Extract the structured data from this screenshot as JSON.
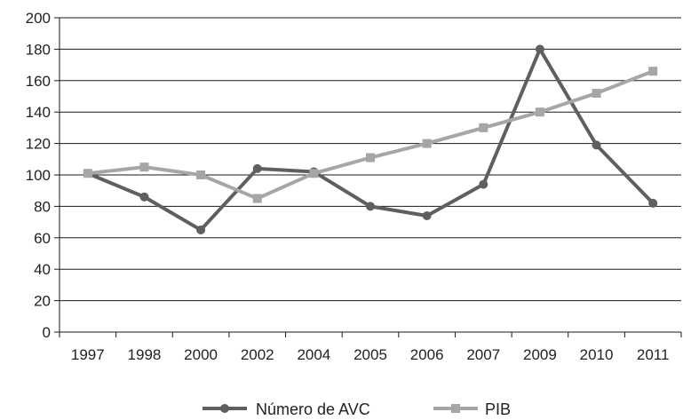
{
  "chart_data": {
    "type": "line",
    "categories": [
      "1997",
      "1998",
      "2000",
      "2002",
      "2004",
      "2005",
      "2006",
      "2007",
      "2009",
      "2010",
      "2011"
    ],
    "series": [
      {
        "name": "Número de AVC",
        "color": "#5f5f5f",
        "marker": "circle",
        "values": [
          101,
          86,
          65,
          104,
          102,
          80,
          74,
          94,
          180,
          119,
          82
        ]
      },
      {
        "name": "PIB",
        "color": "#a6a6a6",
        "marker": "square",
        "values": [
          101,
          105,
          100,
          85,
          101,
          111,
          120,
          130,
          140,
          152,
          166
        ]
      }
    ],
    "ylim": [
      0,
      200
    ],
    "yticks": [
      0,
      20,
      40,
      60,
      80,
      100,
      120,
      140,
      160,
      180,
      200
    ],
    "grid": "horizontal",
    "legend": "bottom"
  }
}
